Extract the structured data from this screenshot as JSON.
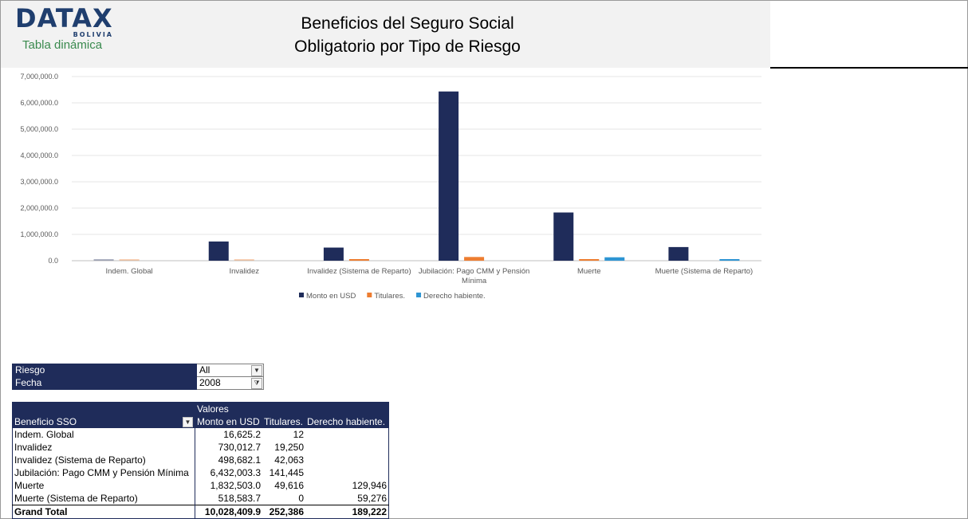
{
  "header": {
    "logo_text": "DATAX",
    "logo_sub": "BOLIVIA",
    "subtitle": "Tabla dinámica",
    "title_line1": "Beneficios del Seguro Social",
    "title_line2": "Obligatorio por Tipo de Riesgo"
  },
  "colors": {
    "header_bg": "#f2f2f2",
    "pivot_header": "#1f2c5a",
    "series_monto": "#1f2c5a",
    "series_titulares": "#ed7d31",
    "series_derecho": "#2e95d3"
  },
  "chart_data": {
    "type": "bar",
    "categories": [
      "Indem. Global",
      "Invalidez",
      "Invalidez (Sistema de Reparto)",
      "Jubilación: Pago CMM y Pensión Mínima",
      "Muerte",
      "Muerte (Sistema de Reparto)"
    ],
    "category_lines": [
      [
        "Indem. Global"
      ],
      [
        "Invalidez"
      ],
      [
        "Invalidez (Sistema de Reparto)"
      ],
      [
        "Jubilación: Pago CMM y Pensión",
        "Mínima"
      ],
      [
        "Muerte"
      ],
      [
        "Muerte (Sistema de Reparto)"
      ]
    ],
    "series": [
      {
        "name": "Monto en USD",
        "color": "#1f2c5a",
        "values": [
          16625.2,
          730012.7,
          498682.1,
          6432003.3,
          1832503.0,
          518583.7
        ]
      },
      {
        "name": "Titulares.",
        "color": "#ed7d31",
        "values": [
          12,
          19250,
          42063,
          141445,
          49616,
          0
        ]
      },
      {
        "name": "Derecho habiente.",
        "color": "#2e95d3",
        "values": [
          0,
          0,
          0,
          0,
          129946,
          59276
        ]
      }
    ],
    "ylim": [
      0,
      7000000
    ],
    "yticks": [
      "0.0",
      "1,000,000.0",
      "2,000,000.0",
      "3,000,000.0",
      "4,000,000.0",
      "5,000,000.0",
      "6,000,000.0",
      "7,000,000.0"
    ],
    "ytick_values": [
      0,
      1000000,
      2000000,
      3000000,
      4000000,
      5000000,
      6000000,
      7000000
    ],
    "grid": true,
    "legend_position": "bottom"
  },
  "filters": {
    "riesgo_label": "Riesgo",
    "riesgo_value": "All",
    "fecha_label": "Fecha",
    "fecha_value": "2008"
  },
  "pivot": {
    "valores_label": "Valores",
    "row_header": "Beneficio SSO",
    "col_headers": [
      "Monto en USD",
      "Titulares.",
      "Derecho habiente."
    ],
    "rows": [
      {
        "label": "Indem. Global",
        "monto": "16,625.2",
        "titulares": "12",
        "derecho": ""
      },
      {
        "label": "Invalidez",
        "monto": "730,012.7",
        "titulares": "19,250",
        "derecho": ""
      },
      {
        "label": "Invalidez (Sistema de Reparto)",
        "monto": "498,682.1",
        "titulares": "42,063",
        "derecho": ""
      },
      {
        "label": "Jubilación: Pago CMM y Pensión Mínima",
        "monto": "6,432,003.3",
        "titulares": "141,445",
        "derecho": ""
      },
      {
        "label": "Muerte",
        "monto": "1,832,503.0",
        "titulares": "49,616",
        "derecho": "129,946"
      },
      {
        "label": "Muerte (Sistema de Reparto)",
        "monto": "518,583.7",
        "titulares": "0",
        "derecho": "59,276"
      }
    ],
    "total": {
      "label": "Grand Total",
      "monto": "10,028,409.9",
      "titulares": "252,386",
      "derecho": "189,222"
    }
  }
}
